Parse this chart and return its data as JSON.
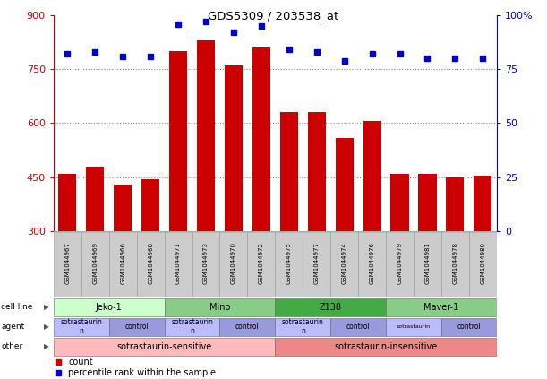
{
  "title": "GDS5309 / 203538_at",
  "samples": [
    "GSM1044967",
    "GSM1044969",
    "GSM1044966",
    "GSM1044968",
    "GSM1044971",
    "GSM1044973",
    "GSM1044970",
    "GSM1044972",
    "GSM1044975",
    "GSM1044977",
    "GSM1044974",
    "GSM1044976",
    "GSM1044979",
    "GSM1044981",
    "GSM1044978",
    "GSM1044980"
  ],
  "counts": [
    460,
    480,
    430,
    445,
    800,
    830,
    760,
    810,
    630,
    630,
    560,
    605,
    460,
    460,
    450,
    455
  ],
  "percentile_ranks": [
    82,
    83,
    81,
    81,
    96,
    97,
    92,
    95,
    84,
    83,
    79,
    82,
    82,
    80,
    80,
    80
  ],
  "cell_lines": [
    {
      "label": "Jeko-1",
      "start": 0,
      "end": 4,
      "color": "#ccffcc"
    },
    {
      "label": "Mino",
      "start": 4,
      "end": 8,
      "color": "#88cc88"
    },
    {
      "label": "Z138",
      "start": 8,
      "end": 12,
      "color": "#44aa44"
    },
    {
      "label": "Maver-1",
      "start": 12,
      "end": 16,
      "color": "#88cc88"
    }
  ],
  "agents": [
    {
      "label": "sotrastaurin\nn",
      "start": 0,
      "end": 2,
      "color": "#bbbbff"
    },
    {
      "label": "control",
      "start": 2,
      "end": 4,
      "color": "#9999dd"
    },
    {
      "label": "sotrastaurin\nn",
      "start": 4,
      "end": 6,
      "color": "#bbbbff"
    },
    {
      "label": "control",
      "start": 6,
      "end": 8,
      "color": "#9999dd"
    },
    {
      "label": "sotrastaurin\nn",
      "start": 8,
      "end": 10,
      "color": "#bbbbff"
    },
    {
      "label": "control",
      "start": 10,
      "end": 12,
      "color": "#9999dd"
    },
    {
      "label": "sotrastaurin",
      "start": 12,
      "end": 14,
      "color": "#bbbbff"
    },
    {
      "label": "control",
      "start": 14,
      "end": 16,
      "color": "#9999dd"
    }
  ],
  "others": [
    {
      "label": "sotrastaurin-sensitive",
      "start": 0,
      "end": 8,
      "color": "#ffbbbb"
    },
    {
      "label": "sotrastaurin-insensitive",
      "start": 8,
      "end": 16,
      "color": "#ee8888"
    }
  ],
  "ylim_left": [
    300,
    900
  ],
  "ylim_right": [
    0,
    100
  ],
  "yticks_left": [
    300,
    450,
    600,
    750,
    900
  ],
  "yticks_right": [
    0,
    25,
    50,
    75,
    100
  ],
  "bar_color": "#cc0000",
  "dot_color": "#0000cc",
  "grid_color": "#888888",
  "background_color": "#ffffff",
  "left_axis_color": "#cc0000",
  "right_axis_color": "#0000cc",
  "row_labels": [
    "cell line",
    "agent",
    "other"
  ],
  "legend_count_label": "count",
  "legend_pct_label": "percentile rank within the sample"
}
